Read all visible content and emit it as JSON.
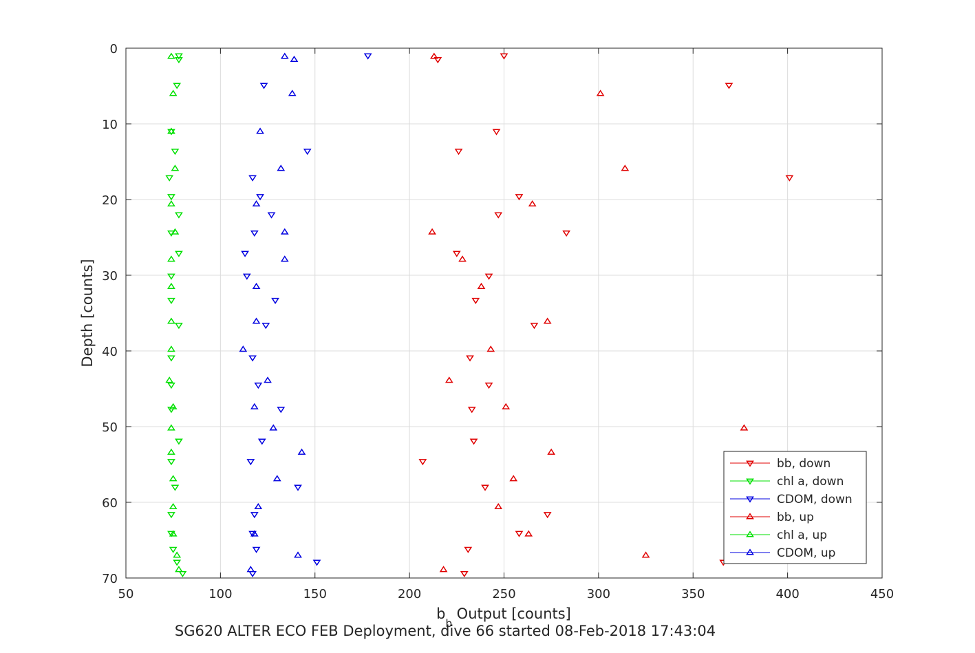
{
  "chart_data": {
    "type": "scatter",
    "title": "",
    "xlabel": "b_b Output [counts]",
    "xlabel_main": "b",
    "xlabel_sub": "b",
    "xlabel_rest": " Output [counts]",
    "ylabel": "Depth [counts]",
    "caption": "SG620 ALTER ECO FEB Deployment, dive 66 started 08-Feb-2018 17:43:04",
    "xlim": [
      50,
      450
    ],
    "ylim": [
      0,
      70
    ],
    "y_reversed": true,
    "grid": true,
    "legend_position": "bottom-right",
    "x_ticks": [
      "50",
      "100",
      "150",
      "200",
      "250",
      "300",
      "350",
      "400",
      "450"
    ],
    "y_ticks": [
      "0",
      "10",
      "20",
      "30",
      "40",
      "50",
      "60",
      "70"
    ],
    "series": [
      {
        "name": "bb, down",
        "color": "#e00000",
        "marker": "triangle-down",
        "points": [
          [
            250,
            1.0
          ],
          [
            215,
            1.5
          ],
          [
            369,
            4.9
          ],
          [
            246,
            11.0
          ],
          [
            226,
            13.6
          ],
          [
            401,
            17.1
          ],
          [
            258,
            19.6
          ],
          [
            247,
            22.0
          ],
          [
            283,
            24.4
          ],
          [
            225,
            27.1
          ],
          [
            242,
            30.1
          ],
          [
            235,
            33.3
          ],
          [
            266,
            36.6
          ],
          [
            232,
            40.9
          ],
          [
            242,
            44.5
          ],
          [
            233,
            47.7
          ],
          [
            234,
            51.9
          ],
          [
            207,
            54.6
          ],
          [
            240,
            58.0
          ],
          [
            273,
            61.6
          ],
          [
            258,
            64.1
          ],
          [
            231,
            66.2
          ],
          [
            366,
            67.9
          ],
          [
            229,
            69.4
          ]
        ]
      },
      {
        "name": "chl a, down",
        "color": "#00e000",
        "marker": "triangle-down",
        "points": [
          [
            78,
            1.0
          ],
          [
            78,
            1.5
          ],
          [
            77,
            4.9
          ],
          [
            74,
            11.0
          ],
          [
            76,
            13.6
          ],
          [
            73,
            17.1
          ],
          [
            74,
            19.6
          ],
          [
            78,
            22.0
          ],
          [
            74,
            24.4
          ],
          [
            78,
            27.1
          ],
          [
            74,
            30.1
          ],
          [
            74,
            33.3
          ],
          [
            78,
            36.6
          ],
          [
            74,
            40.9
          ],
          [
            74,
            44.5
          ],
          [
            74,
            47.7
          ],
          [
            78,
            51.9
          ],
          [
            74,
            54.6
          ],
          [
            76,
            58.0
          ],
          [
            74,
            61.6
          ],
          [
            74,
            64.1
          ],
          [
            75,
            66.2
          ],
          [
            77,
            67.9
          ],
          [
            80,
            69.4
          ]
        ]
      },
      {
        "name": "CDOM, down",
        "color": "#0000e0",
        "marker": "triangle-down",
        "points": [
          [
            178,
            1.0
          ],
          [
            123,
            4.9
          ],
          [
            146,
            13.6
          ],
          [
            117,
            17.1
          ],
          [
            121,
            19.6
          ],
          [
            127,
            22.0
          ],
          [
            118,
            24.4
          ],
          [
            113,
            27.1
          ],
          [
            114,
            30.1
          ],
          [
            129,
            33.3
          ],
          [
            124,
            36.6
          ],
          [
            117,
            40.9
          ],
          [
            120,
            44.5
          ],
          [
            132,
            47.7
          ],
          [
            122,
            51.9
          ],
          [
            116,
            54.6
          ],
          [
            141,
            58.0
          ],
          [
            118,
            61.6
          ],
          [
            117,
            64.1
          ],
          [
            119,
            66.2
          ],
          [
            151,
            67.9
          ],
          [
            117,
            69.4
          ]
        ]
      },
      {
        "name": "bb, up",
        "color": "#e00000",
        "marker": "triangle-up",
        "points": [
          [
            213,
            1.1
          ],
          [
            301,
            6.0
          ],
          [
            314,
            15.9
          ],
          [
            265,
            20.6
          ],
          [
            212,
            24.3
          ],
          [
            228,
            27.9
          ],
          [
            238,
            31.5
          ],
          [
            273,
            36.1
          ],
          [
            243,
            39.8
          ],
          [
            221,
            43.9
          ],
          [
            251,
            47.4
          ],
          [
            377,
            50.2
          ],
          [
            275,
            53.4
          ],
          [
            255,
            56.9
          ],
          [
            247,
            60.6
          ],
          [
            263,
            64.2
          ],
          [
            325,
            67.0
          ],
          [
            218,
            68.9
          ]
        ]
      },
      {
        "name": "chl a, up",
        "color": "#00e000",
        "marker": "triangle-up",
        "points": [
          [
            74,
            1.1
          ],
          [
            75,
            6.0
          ],
          [
            74,
            11.0
          ],
          [
            76,
            15.9
          ],
          [
            74,
            20.6
          ],
          [
            76,
            24.3
          ],
          [
            74,
            27.9
          ],
          [
            74,
            31.5
          ],
          [
            74,
            36.1
          ],
          [
            74,
            39.8
          ],
          [
            73,
            43.9
          ],
          [
            75,
            47.4
          ],
          [
            74,
            50.2
          ],
          [
            74,
            53.4
          ],
          [
            75,
            56.9
          ],
          [
            75,
            60.6
          ],
          [
            75,
            64.2
          ],
          [
            77,
            67.0
          ],
          [
            78,
            68.9
          ]
        ]
      },
      {
        "name": "CDOM, up",
        "color": "#0000e0",
        "marker": "triangle-up",
        "points": [
          [
            134,
            1.1
          ],
          [
            139,
            1.5
          ],
          [
            138,
            6.0
          ],
          [
            121,
            11.0
          ],
          [
            132,
            15.9
          ],
          [
            119,
            20.6
          ],
          [
            134,
            24.3
          ],
          [
            134,
            27.9
          ],
          [
            119,
            31.5
          ],
          [
            119,
            36.1
          ],
          [
            112,
            39.8
          ],
          [
            125,
            43.9
          ],
          [
            118,
            47.4
          ],
          [
            128,
            50.2
          ],
          [
            143,
            53.4
          ],
          [
            130,
            56.9
          ],
          [
            120,
            60.6
          ],
          [
            118,
            64.2
          ],
          [
            141,
            67.0
          ],
          [
            116,
            68.9
          ]
        ]
      }
    ]
  }
}
